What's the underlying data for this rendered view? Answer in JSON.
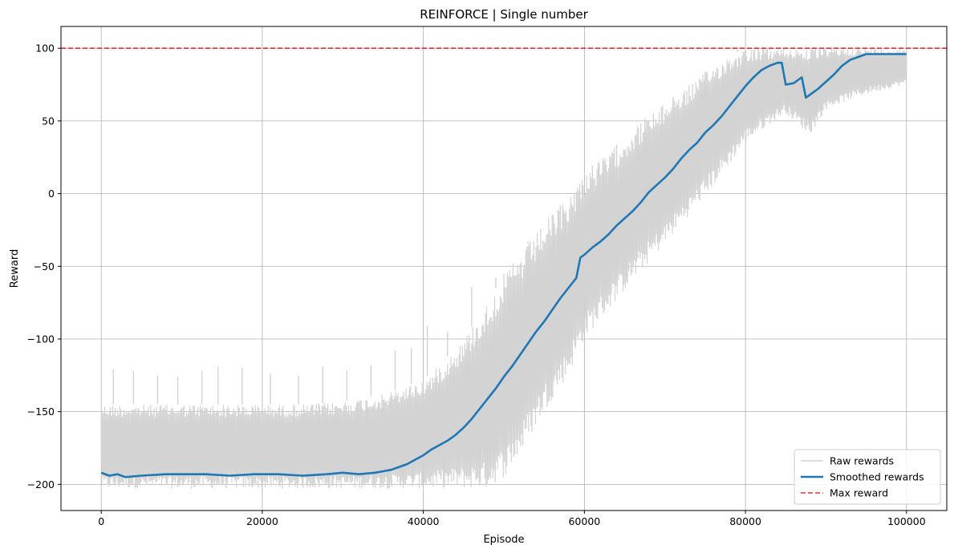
{
  "chart_data": {
    "type": "line",
    "title": "REINFORCE | Single number",
    "xlabel": "Episode",
    "ylabel": "Reward",
    "xlim": [
      -5000,
      105000
    ],
    "ylim": [
      -218,
      115
    ],
    "xticks": [
      0,
      20000,
      40000,
      60000,
      80000,
      100000
    ],
    "xtick_labels": [
      "0",
      "20000",
      "40000",
      "60000",
      "80000",
      "100000"
    ],
    "yticks": [
      -200,
      -150,
      -100,
      -50,
      0,
      50,
      100
    ],
    "ytick_labels": [
      "−200",
      "−150",
      "−100",
      "−50",
      "0",
      "50",
      "100"
    ],
    "grid": true,
    "legend_position": "bottom-right",
    "series": [
      {
        "name": "Raw rewards",
        "color": "#d3d3d3",
        "style": "band",
        "x": [
          0,
          5000,
          10000,
          15000,
          20000,
          25000,
          30000,
          35000,
          40000,
          42000,
          45000,
          48000,
          50000,
          52000,
          55000,
          58000,
          60000,
          63000,
          66000,
          70000,
          73000,
          76000,
          78000,
          80000,
          83000,
          85000,
          88000,
          90000,
          93000,
          96000,
          100000
        ],
        "upper": [
          -145,
          -145,
          -145,
          -145,
          -145,
          -145,
          -143,
          -138,
          -128,
          -118,
          -100,
          -75,
          -55,
          -42,
          -20,
          -2,
          15,
          28,
          45,
          62,
          75,
          88,
          95,
          100,
          100,
          100,
          100,
          100,
          100,
          100,
          100
        ],
        "lower": [
          -203,
          -203,
          -203,
          -203,
          -203,
          -203,
          -203,
          -203,
          -203,
          -203,
          -203,
          -203,
          -195,
          -180,
          -150,
          -125,
          -100,
          -80,
          -60,
          -35,
          -15,
          5,
          20,
          35,
          48,
          55,
          40,
          58,
          65,
          70,
          75
        ],
        "peaks_x": [
          1500,
          4000,
          7000,
          9500,
          12500,
          14500,
          17500,
          21000,
          24500,
          27500,
          30500,
          33500,
          36500,
          38500,
          40500,
          43000,
          46000,
          49000,
          53000,
          57000,
          61000,
          64000,
          67500,
          71000,
          75000,
          79000
        ],
        "peaks_y": [
          -121,
          -122,
          -125,
          -126,
          -122,
          -119,
          -120,
          -124,
          -125,
          -119,
          -122,
          -118,
          -108,
          -106,
          -91,
          -95,
          -64,
          -58,
          -33,
          -13,
          3,
          14,
          25,
          40,
          56,
          100
        ]
      },
      {
        "name": "Smoothed rewards",
        "color": "#1f77b4",
        "style": "line",
        "x": [
          0,
          1000,
          2000,
          3000,
          5000,
          8000,
          10000,
          13000,
          16000,
          19000,
          22000,
          25000,
          28000,
          30000,
          32000,
          34000,
          35000,
          36000,
          37000,
          38000,
          39000,
          40000,
          41000,
          42000,
          43000,
          44000,
          45000,
          46000,
          47000,
          48000,
          49000,
          50000,
          51000,
          52000,
          53000,
          54000,
          55000,
          56000,
          57000,
          58000,
          59000,
          59500,
          60000,
          61000,
          62000,
          63000,
          64000,
          65000,
          66000,
          67000,
          68000,
          69000,
          70000,
          71000,
          72000,
          73000,
          74000,
          75000,
          76000,
          77000,
          78000,
          79000,
          80000,
          81000,
          82000,
          83000,
          84000,
          84500,
          85000,
          86000,
          87000,
          87500,
          88000,
          89000,
          90000,
          91000,
          92000,
          93000,
          94000,
          95000,
          96000,
          97000,
          98000,
          99000,
          100000
        ],
        "y": [
          -192,
          -194,
          -193,
          -195,
          -194,
          -193,
          -193,
          -193,
          -194,
          -193,
          -193,
          -194,
          -193,
          -192,
          -193,
          -192,
          -191,
          -190,
          -188,
          -186,
          -183,
          -180,
          -176,
          -173,
          -170,
          -166,
          -161,
          -155,
          -148,
          -141,
          -134,
          -126,
          -119,
          -111,
          -103,
          -95,
          -88,
          -80,
          -72,
          -65,
          -58,
          -44,
          -42,
          -37,
          -33,
          -28,
          -22,
          -17,
          -12,
          -6,
          1,
          6,
          11,
          17,
          24,
          30,
          35,
          42,
          47,
          53,
          60,
          67,
          74,
          80,
          85,
          88,
          90,
          90,
          75,
          76,
          80,
          66,
          68,
          72,
          77,
          82,
          88,
          92,
          94,
          96,
          96,
          96,
          96,
          96,
          96
        ]
      },
      {
        "name": "Max reward",
        "color": "#e8312f",
        "style": "dashed",
        "y": 100
      }
    ]
  }
}
